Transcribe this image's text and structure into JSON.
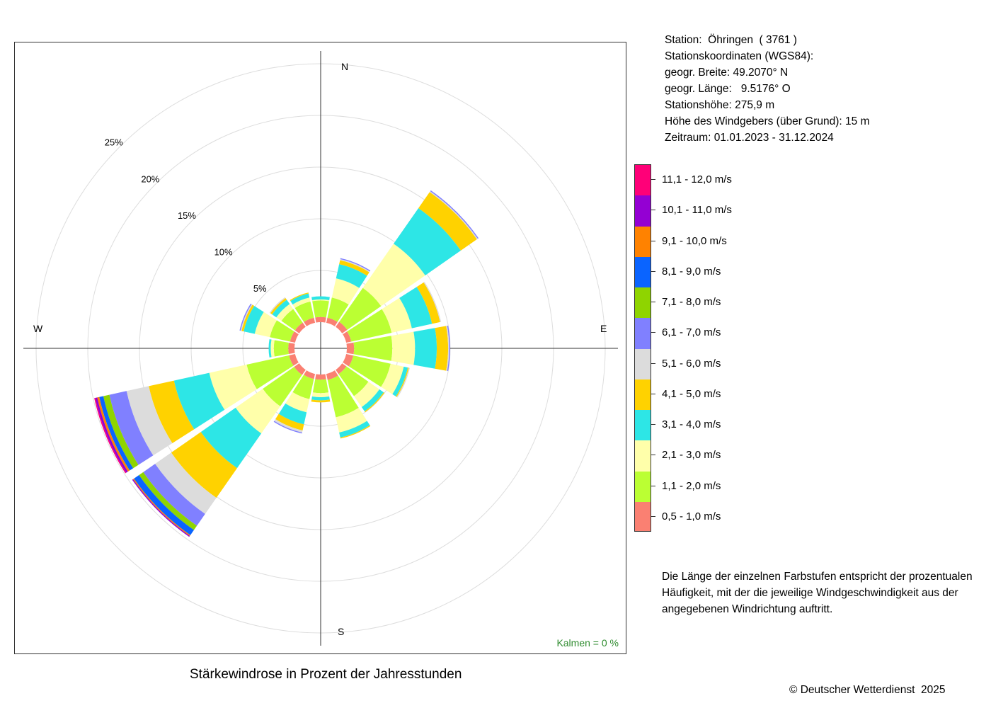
{
  "station": {
    "line1": "Station:  Öhringen  ( 3761 )",
    "line2": "Stationskoordinaten (WGS84):",
    "line3": "geogr. Breite: 49.2070° N",
    "line4": "geogr. Länge:   9.5176° O",
    "line5": "Stationshöhe: 275,9 m",
    "line6": "Höhe des Windgebers (über Grund): 15 m",
    "line7": "Zeitraum: 01.01.2023 - 31.12.2024"
  },
  "note": "Die Länge der einzelnen Farbstufen entspricht der prozentualen Häufigkeit, mit der die jeweilige Windgeschwindigkeit aus der angegebenen Windrichtung auftritt.",
  "title": "Stärkewindrose in Prozent der Jahresstunden",
  "copyright": "© Deutscher Wetterdienst  2025",
  "calm_label": "Kalmen  =  0 %",
  "chart_data": {
    "type": "wind-rose",
    "unit": "%",
    "radial_ticks": [
      {
        "value": 5,
        "label": "5%"
      },
      {
        "value": 10,
        "label": "10%"
      },
      {
        "value": 15,
        "label": "15%"
      },
      {
        "value": 20,
        "label": "20%"
      },
      {
        "value": 25,
        "label": "25%"
      }
    ],
    "radial_max": 25,
    "compass_labels": {
      "north": "N",
      "east": "E",
      "south": "S",
      "west": "W"
    },
    "calm_percent": 0,
    "speed_classes": [
      {
        "label": "0,5 - 1,0 m/s",
        "color": "#FA8072"
      },
      {
        "label": "1,1 - 2,0 m/s",
        "color": "#BBFF33"
      },
      {
        "label": "2,1 - 3,0 m/s",
        "color": "#FFFFAA"
      },
      {
        "label": "3,1 - 4,0 m/s",
        "color": "#2DE6E6"
      },
      {
        "label": "4,1 - 5,0 m/s",
        "color": "#FFD200"
      },
      {
        "label": "5,1 - 6,0 m/s",
        "color": "#DCDCDC"
      },
      {
        "label": "6,1 - 7,0 m/s",
        "color": "#8080FF"
      },
      {
        "label": "7,1 - 8,0 m/s",
        "color": "#8FD400"
      },
      {
        "label": "8,1 - 9,0 m/s",
        "color": "#0A64FF"
      },
      {
        "label": "9,1 - 10,0 m/s",
        "color": "#FF8200"
      },
      {
        "label": "10,1 - 11,0 m/s",
        "color": "#9400D3"
      },
      {
        "label": "11,1 - 12,0 m/s",
        "color": "#FF0078"
      }
    ],
    "directions": [
      {
        "dir": "N",
        "values": [
          0.5,
          1.6,
          0.1,
          0.3,
          0,
          0,
          0,
          0,
          0,
          0,
          0,
          0
        ]
      },
      {
        "dir": "NNE",
        "values": [
          0.5,
          2.0,
          1.9,
          1.4,
          0.4,
          0.1,
          0.1,
          0,
          0,
          0,
          0,
          0
        ]
      },
      {
        "dir": "NE",
        "values": [
          0.6,
          4.0,
          5.2,
          4.2,
          1.9,
          0.1,
          0.1,
          0,
          0,
          0,
          0,
          0
        ]
      },
      {
        "dir": "ENE",
        "values": [
          0.5,
          4.0,
          2.0,
          2.0,
          0.8,
          0.1,
          0,
          0,
          0,
          0,
          0,
          0
        ]
      },
      {
        "dir": "E",
        "values": [
          0.7,
          3.7,
          2.2,
          2.1,
          1.1,
          0.1,
          0.1,
          0,
          0,
          0,
          0,
          0
        ]
      },
      {
        "dir": "ESE",
        "values": [
          0.7,
          3.7,
          1.3,
          0.4,
          0.1,
          0.1,
          0,
          0,
          0,
          0,
          0,
          0
        ]
      },
      {
        "dir": "SE",
        "values": [
          0.5,
          2.6,
          1.3,
          0.5,
          0.1,
          0,
          0,
          0,
          0,
          0,
          0,
          0
        ]
      },
      {
        "dir": "SSE",
        "values": [
          0.6,
          3.7,
          1.5,
          0.5,
          0.1,
          0,
          0,
          0,
          0,
          0,
          0,
          0
        ]
      },
      {
        "dir": "S",
        "values": [
          0.5,
          1.3,
          0.4,
          0.3,
          0.2,
          0,
          0,
          0,
          0,
          0,
          0,
          0
        ]
      },
      {
        "dir": "SSW",
        "values": [
          0.5,
          2.0,
          1.3,
          1.2,
          0.6,
          0.2,
          0.1,
          0,
          0,
          0,
          0,
          0
        ]
      },
      {
        "dir": "SW",
        "values": [
          0.6,
          3.7,
          3.2,
          4.1,
          3.5,
          1.9,
          1.4,
          0.5,
          0.6,
          0.1,
          0.1,
          0
        ]
      },
      {
        "dir": "WSW",
        "values": [
          0.6,
          4.2,
          3.7,
          3.5,
          2.5,
          2.2,
          1.7,
          0.6,
          0.4,
          0.2,
          0.2,
          0.1
        ]
      },
      {
        "dir": "W",
        "values": [
          0.6,
          1.4,
          0.3,
          0.2,
          0,
          0,
          0,
          0,
          0,
          0,
          0,
          0
        ]
      },
      {
        "dir": "WNW",
        "values": [
          0.5,
          2.0,
          1.5,
          1.1,
          0.2,
          0.1,
          0.1,
          0,
          0,
          0,
          0,
          0
        ]
      },
      {
        "dir": "NW",
        "values": [
          0.5,
          1.6,
          0.6,
          0.5,
          0.2,
          0.1,
          0,
          0,
          0,
          0,
          0,
          0
        ]
      },
      {
        "dir": "NNW",
        "values": [
          0.5,
          1.6,
          0.4,
          0.4,
          0.1,
          0,
          0,
          0,
          0,
          0,
          0,
          0
        ]
      }
    ]
  }
}
